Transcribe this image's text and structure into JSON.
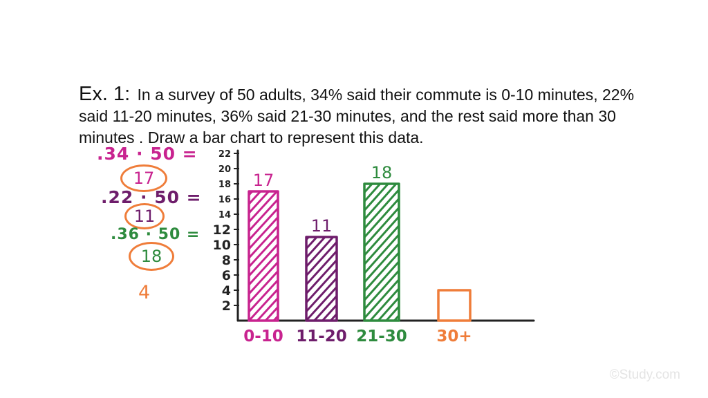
{
  "problem": {
    "label": "Ex. 1:",
    "text": "In a survey of 50 adults, 34% said their commute is 0-10 minutes, 22% said 11-20 minutes, 36% said 21-30 minutes, and the rest said more than 30 minutes . Draw a bar chart to represent this data."
  },
  "work": {
    "calc1": ".34 · 50 =",
    "result1": "17",
    "calc2": ".22 · 50 =",
    "result2": "11",
    "calc3": ".36 · 50 =",
    "result3": "18",
    "result4": "4"
  },
  "colors": {
    "magenta": "#c8238f",
    "purple": "#6e1d6b",
    "green": "#2e8b3e",
    "orange": "#ef7d3a",
    "axis": "#222222"
  },
  "watermark": "©Study.com",
  "chart_data": {
    "type": "bar",
    "title": "",
    "xlabel": "",
    "ylabel": "",
    "categories": [
      "0-10",
      "11-20",
      "21-30",
      "30+"
    ],
    "values": [
      17,
      11,
      18,
      4
    ],
    "data_labels": [
      "17",
      "11",
      "18",
      ""
    ],
    "colors": [
      "#c8238f",
      "#6e1d6b",
      "#2e8b3e",
      "#ef7d3a"
    ],
    "hatched": [
      true,
      true,
      true,
      false
    ],
    "y_ticks": [
      "2",
      "4",
      "6",
      "8",
      "10",
      "12",
      "14",
      "16",
      "18",
      "20",
      "22"
    ],
    "ylim": [
      0,
      22
    ],
    "grid": false,
    "legend": "none"
  }
}
